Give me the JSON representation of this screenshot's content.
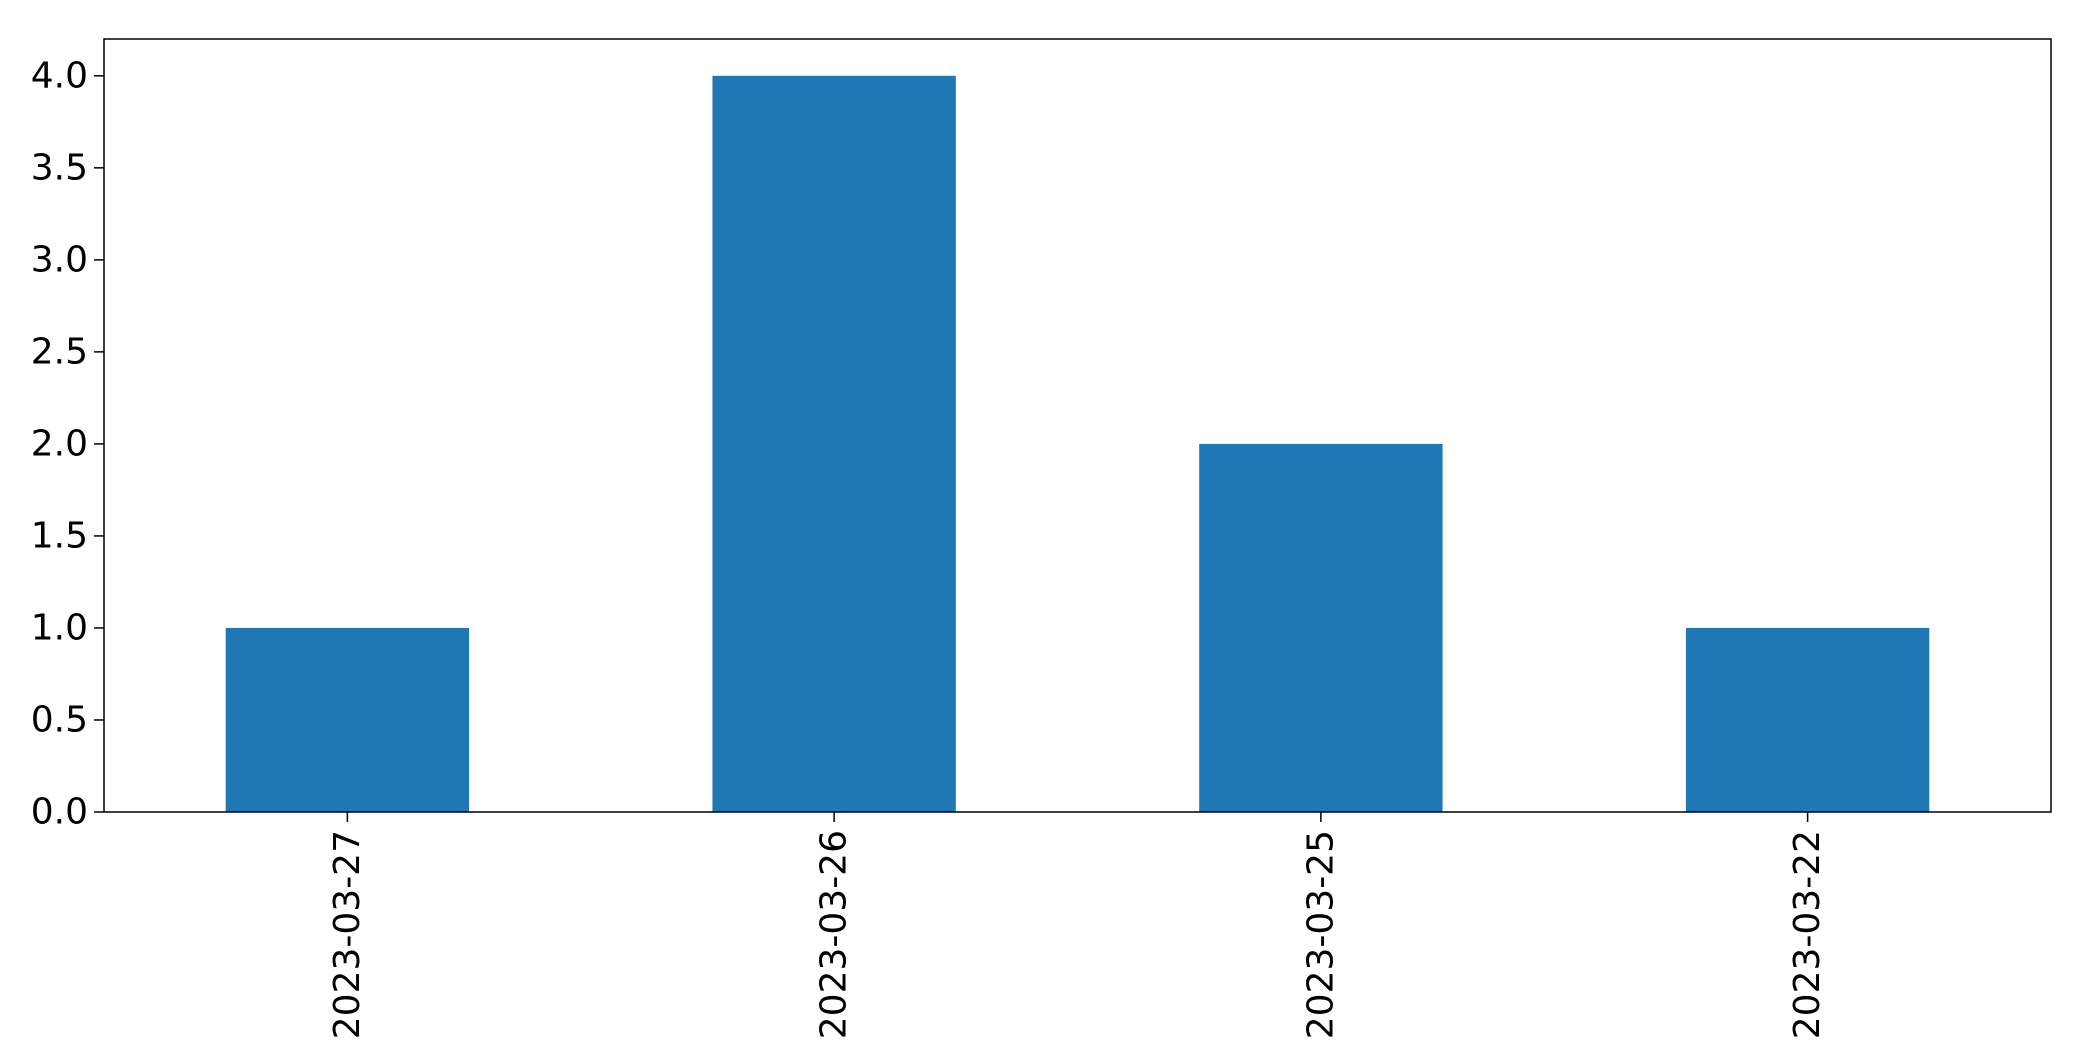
{
  "chart_data": {
    "type": "bar",
    "categories": [
      "2023-03-27",
      "2023-03-26",
      "2023-03-25",
      "2023-03-22"
    ],
    "values": [
      1,
      4,
      2,
      1
    ],
    "title": "",
    "xlabel": "",
    "ylabel": "",
    "ylim": [
      0,
      4.2
    ],
    "yticks": [
      0.0,
      0.5,
      1.0,
      1.5,
      2.0,
      2.5,
      3.0,
      3.5,
      4.0
    ],
    "ytick_labels": [
      "0.0",
      "0.5",
      "1.0",
      "1.5",
      "2.0",
      "2.5",
      "3.0",
      "3.5",
      "4.0"
    ],
    "grid": false,
    "legend": "none",
    "bar_color": "#1f77b4"
  }
}
